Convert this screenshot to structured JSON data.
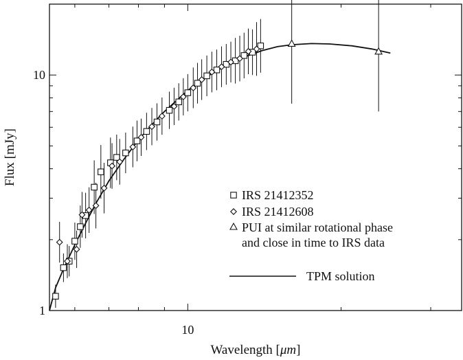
{
  "chart_data": {
    "type": "scatter",
    "xlabel": "Wavelength [",
    "xlabel_unit": "μm",
    "xlabel_close": "]",
    "ylabel": "Flux [mJy]",
    "x_scale": "log",
    "y_scale": "log",
    "xlim": [
      5.35,
      34.5
    ],
    "ylim": [
      1.0,
      20.0
    ],
    "x_ticklabels": [
      {
        "value": 10,
        "label": "10"
      }
    ],
    "y_ticklabels": [
      {
        "value": 1,
        "label": "1"
      },
      {
        "value": 10,
        "label": "10"
      }
    ],
    "legend_position": "center-right",
    "series": [
      {
        "name": "IRS 21412352",
        "marker": "square",
        "points": [
          {
            "x": 5.5,
            "y": 1.15,
            "err": 0.12
          },
          {
            "x": 5.7,
            "y": 1.52,
            "err": 0.15
          },
          {
            "x": 5.85,
            "y": 1.62,
            "err": 0.16
          },
          {
            "x": 6.0,
            "y": 1.97,
            "err": 0.2
          },
          {
            "x": 6.15,
            "y": 2.27,
            "err": 0.23
          },
          {
            "x": 6.3,
            "y": 2.53,
            "err": 0.25
          },
          {
            "x": 6.55,
            "y": 3.34,
            "err": 0.3
          },
          {
            "x": 6.75,
            "y": 3.88,
            "err": 0.3
          },
          {
            "x": 7.05,
            "y": 4.24,
            "err": 0.28
          },
          {
            "x": 7.25,
            "y": 4.47,
            "err": 0.25
          },
          {
            "x": 7.55,
            "y": 4.67,
            "err": 0.22
          },
          {
            "x": 7.95,
            "y": 5.25,
            "err": 0.22
          },
          {
            "x": 8.3,
            "y": 5.76,
            "err": 0.2
          },
          {
            "x": 8.7,
            "y": 6.32,
            "err": 0.2
          },
          {
            "x": 9.2,
            "y": 7.08,
            "err": 0.2
          },
          {
            "x": 9.6,
            "y": 7.69,
            "err": 0.2
          },
          {
            "x": 10.0,
            "y": 8.41,
            "err": 0.2
          },
          {
            "x": 10.45,
            "y": 9.23,
            "err": 0.22
          },
          {
            "x": 10.9,
            "y": 9.92,
            "err": 0.22
          },
          {
            "x": 11.4,
            "y": 10.51,
            "err": 0.22
          },
          {
            "x": 11.9,
            "y": 11.1,
            "err": 0.22
          },
          {
            "x": 12.4,
            "y": 11.5,
            "err": 0.25
          },
          {
            "x": 12.9,
            "y": 12.1,
            "err": 0.25
          },
          {
            "x": 13.4,
            "y": 12.5,
            "err": 0.25
          },
          {
            "x": 13.9,
            "y": 13.3,
            "err": 0.3
          }
        ]
      },
      {
        "name": "IRS 21412608",
        "marker": "diamond",
        "points": [
          {
            "x": 5.6,
            "y": 1.95,
            "err": 0.22
          },
          {
            "x": 5.8,
            "y": 1.62,
            "err": 0.18
          },
          {
            "x": 6.05,
            "y": 1.82,
            "err": 0.2
          },
          {
            "x": 6.2,
            "y": 2.55,
            "err": 0.25
          },
          {
            "x": 6.4,
            "y": 2.67,
            "err": 0.25
          },
          {
            "x": 6.6,
            "y": 2.79,
            "err": 0.25
          },
          {
            "x": 6.85,
            "y": 3.31,
            "err": 0.28
          },
          {
            "x": 7.1,
            "y": 4.11,
            "err": 0.25
          },
          {
            "x": 7.35,
            "y": 4.28,
            "err": 0.25
          },
          {
            "x": 7.8,
            "y": 4.95,
            "err": 0.22
          },
          {
            "x": 8.1,
            "y": 5.44,
            "err": 0.2
          },
          {
            "x": 8.5,
            "y": 6.04,
            "err": 0.2
          },
          {
            "x": 8.9,
            "y": 6.69,
            "err": 0.2
          },
          {
            "x": 9.4,
            "y": 7.36,
            "err": 0.2
          },
          {
            "x": 9.8,
            "y": 8.08,
            "err": 0.2
          },
          {
            "x": 10.25,
            "y": 8.82,
            "err": 0.22
          },
          {
            "x": 10.65,
            "y": 9.56,
            "err": 0.22
          },
          {
            "x": 11.15,
            "y": 10.3,
            "err": 0.22
          },
          {
            "x": 11.65,
            "y": 10.84,
            "err": 0.22
          },
          {
            "x": 12.15,
            "y": 11.35,
            "err": 0.22
          },
          {
            "x": 12.65,
            "y": 11.75,
            "err": 0.25
          },
          {
            "x": 13.15,
            "y": 12.6,
            "err": 0.25
          },
          {
            "x": 13.65,
            "y": 12.9,
            "err": 0.3
          }
        ]
      },
      {
        "name": "PUI at similar rotational phase",
        "name_line2": "and close in time to IRS data",
        "marker": "triangle",
        "points": [
          {
            "x": 16.0,
            "y": 13.6,
            "err": 0.8
          },
          {
            "x": 23.7,
            "y": 12.6,
            "err": 0.8
          }
        ]
      }
    ],
    "model": {
      "name": "TPM solution",
      "style": "solid line",
      "points": [
        [
          5.35,
          1.0
        ],
        [
          5.5,
          1.25
        ],
        [
          5.7,
          1.5
        ],
        [
          6.0,
          1.9
        ],
        [
          6.3,
          2.35
        ],
        [
          6.6,
          2.85
        ],
        [
          7.0,
          3.55
        ],
        [
          7.5,
          4.4
        ],
        [
          8.0,
          5.3
        ],
        [
          8.5,
          6.15
        ],
        [
          9.0,
          7.0
        ],
        [
          10.0,
          8.6
        ],
        [
          11.0,
          9.95
        ],
        [
          12.0,
          11.1
        ],
        [
          13.0,
          12.0
        ],
        [
          14.0,
          12.7
        ],
        [
          15.0,
          13.2
        ],
        [
          16.0,
          13.45
        ],
        [
          17.5,
          13.6
        ],
        [
          19.0,
          13.55
        ],
        [
          21.0,
          13.3
        ],
        [
          23.0,
          12.9
        ],
        [
          25.0,
          12.4
        ]
      ]
    }
  }
}
